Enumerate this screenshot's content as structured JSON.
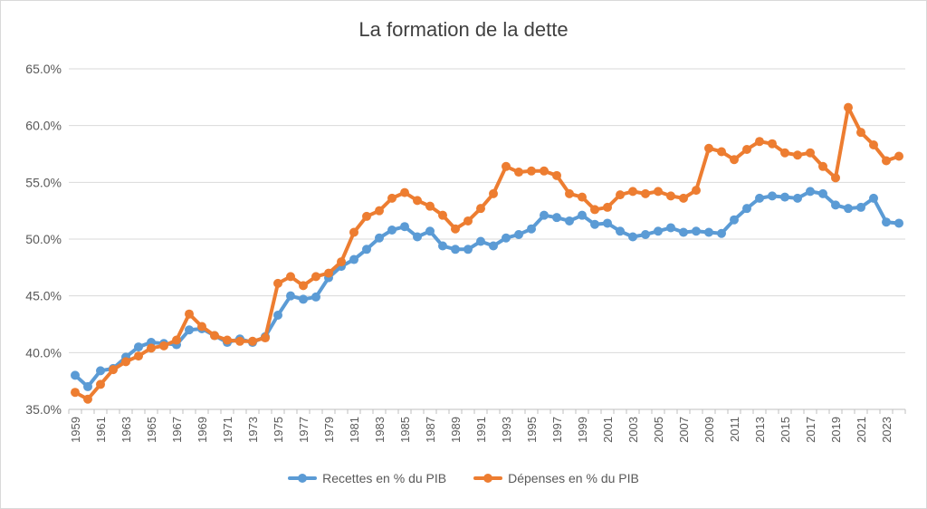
{
  "chart_data": {
    "type": "line",
    "title": "La formation de la dette",
    "xlabel": "",
    "ylabel": "",
    "ylim": [
      0.35,
      0.65
    ],
    "yticks": [
      "35.0%",
      "40.0%",
      "45.0%",
      "50.0%",
      "55.0%",
      "60.0%",
      "65.0%"
    ],
    "x": [
      1959,
      1960,
      1961,
      1962,
      1963,
      1964,
      1965,
      1966,
      1967,
      1968,
      1969,
      1970,
      1971,
      1972,
      1973,
      1974,
      1975,
      1976,
      1977,
      1978,
      1979,
      1980,
      1981,
      1982,
      1983,
      1984,
      1985,
      1986,
      1987,
      1988,
      1989,
      1990,
      1991,
      1992,
      1993,
      1994,
      1995,
      1996,
      1997,
      1998,
      1999,
      2000,
      2001,
      2002,
      2003,
      2004,
      2005,
      2006,
      2007,
      2008,
      2009,
      2010,
      2011,
      2012,
      2013,
      2014,
      2015,
      2016,
      2017,
      2018,
      2019,
      2020,
      2021,
      2022,
      2023,
      2024
    ],
    "xtick_labels": [
      "1959",
      "1961",
      "1963",
      "1965",
      "1967",
      "1969",
      "1971",
      "1973",
      "1975",
      "1977",
      "1979",
      "1981",
      "1983",
      "1985",
      "1987",
      "1989",
      "1991",
      "1993",
      "1995",
      "1997",
      "1999",
      "2001",
      "2003",
      "2005",
      "2007",
      "2009",
      "2011",
      "2013",
      "2015",
      "2017",
      "2019",
      "2021",
      "2023"
    ],
    "series": [
      {
        "name": "Recettes en % du PIB",
        "color": "#5b9bd5",
        "values": [
          0.38,
          0.37,
          0.384,
          0.386,
          0.396,
          0.405,
          0.409,
          0.408,
          0.407,
          0.42,
          0.421,
          0.415,
          0.409,
          0.412,
          0.409,
          0.414,
          0.433,
          0.45,
          0.447,
          0.449,
          0.466,
          0.476,
          0.482,
          0.491,
          0.501,
          0.508,
          0.511,
          0.502,
          0.507,
          0.494,
          0.491,
          0.491,
          0.498,
          0.494,
          0.501,
          0.504,
          0.509,
          0.521,
          0.519,
          0.516,
          0.521,
          0.513,
          0.514,
          0.507,
          0.502,
          0.504,
          0.507,
          0.51,
          0.506,
          0.507,
          0.506,
          0.505,
          0.517,
          0.527,
          0.536,
          0.538,
          0.537,
          0.536,
          0.542,
          0.54,
          0.53,
          0.527,
          0.528,
          0.536,
          0.515,
          0.514
        ]
      },
      {
        "name": "Dépenses en % du PIB",
        "color": "#ed7d31",
        "values": [
          0.365,
          0.359,
          0.372,
          0.385,
          0.392,
          0.397,
          0.404,
          0.406,
          0.411,
          0.434,
          0.423,
          0.415,
          0.411,
          0.41,
          0.41,
          0.413,
          0.461,
          0.467,
          0.459,
          0.467,
          0.47,
          0.48,
          0.506,
          0.52,
          0.525,
          0.536,
          0.541,
          0.534,
          0.529,
          0.521,
          0.509,
          0.516,
          0.527,
          0.54,
          0.564,
          0.559,
          0.56,
          0.56,
          0.556,
          0.54,
          0.537,
          0.526,
          0.528,
          0.539,
          0.542,
          0.54,
          0.542,
          0.538,
          0.536,
          0.543,
          0.58,
          0.577,
          0.57,
          0.579,
          0.586,
          0.584,
          0.576,
          0.574,
          0.576,
          0.564,
          0.554,
          0.616,
          0.594,
          0.583,
          0.569,
          0.573
        ]
      }
    ],
    "legend_position": "bottom",
    "grid": true
  }
}
